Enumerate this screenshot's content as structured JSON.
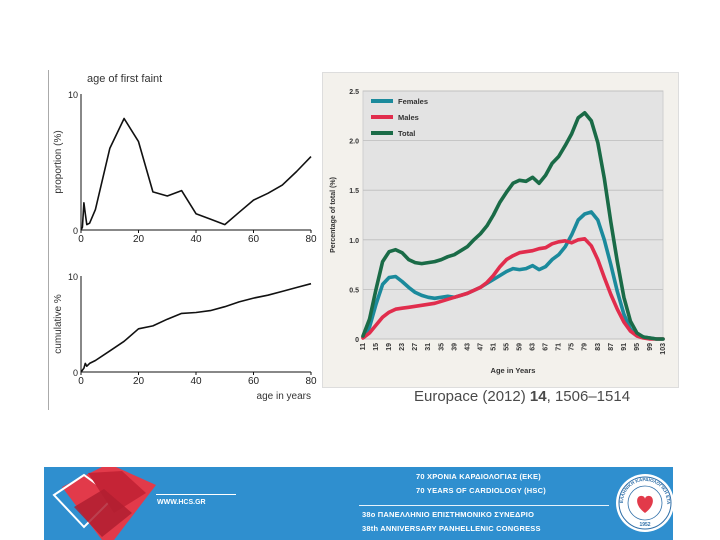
{
  "chart_data": [
    {
      "type": "line",
      "title": "age of first faint",
      "ylabel": "proportion (%)",
      "xlabel": "",
      "xlim": [
        0,
        80
      ],
      "ylim": [
        0,
        10
      ],
      "xticks": [
        "0",
        "20",
        "40",
        "60",
        "80"
      ],
      "yticks": [
        "0",
        "10"
      ],
      "series": [
        {
          "name": "age of first faint",
          "x": [
            0,
            0.5,
            1,
            1.5,
            2,
            3,
            5,
            10,
            15,
            20,
            25,
            30,
            35,
            40,
            45,
            50,
            55,
            60,
            65,
            70,
            75,
            80
          ],
          "values": [
            0,
            0.2,
            2.0,
            1.2,
            0.4,
            0.5,
            1.5,
            6.0,
            8.2,
            6.5,
            2.8,
            2.5,
            2.9,
            1.2,
            0.8,
            0.4,
            1.3,
            2.2,
            2.7,
            3.3,
            4.3,
            5.4
          ]
        }
      ]
    },
    {
      "type": "line",
      "title": "",
      "ylabel": "cumulative %",
      "xlabel": "age in years",
      "xlim": [
        0,
        80
      ],
      "ylim": [
        0,
        10
      ],
      "xticks": [
        "0",
        "20",
        "40",
        "60",
        "80"
      ],
      "yticks": [
        "0",
        "10"
      ],
      "series": [
        {
          "name": "cumulative",
          "x": [
            0,
            1,
            1.5,
            2,
            3,
            5,
            10,
            15,
            20,
            25,
            30,
            35,
            40,
            45,
            50,
            55,
            60,
            65,
            70,
            75,
            80
          ],
          "values": [
            0,
            0.4,
            0.9,
            0.6,
            0.9,
            1.2,
            2.2,
            3.2,
            4.5,
            4.8,
            5.5,
            6.1,
            6.2,
            6.4,
            6.8,
            7.3,
            7.7,
            8.0,
            8.4,
            8.8,
            9.2
          ]
        }
      ]
    },
    {
      "type": "line",
      "title": "",
      "xlabel": "Age in Years",
      "ylabel": "Percentage of total (%)",
      "xlim": [
        11,
        103
      ],
      "ylim": [
        0,
        2.5
      ],
      "yticks": [
        "0",
        "0.5",
        "1.0",
        "1.5",
        "2.0",
        "2.5"
      ],
      "xticks": [
        "11",
        "15",
        "19",
        "23",
        "27",
        "31",
        "35",
        "39",
        "43",
        "47",
        "51",
        "55",
        "59",
        "63",
        "67",
        "71",
        "75",
        "79",
        "83",
        "87",
        "91",
        "95",
        "99",
        "103"
      ],
      "legend_position": "top-left",
      "colors": {
        "Females": "#1b8a9c",
        "Males": "#e12d4d",
        "Total": "#1a6b47"
      },
      "series": [
        {
          "name": "Females",
          "x": [
            11,
            13,
            15,
            17,
            19,
            21,
            23,
            25,
            27,
            29,
            31,
            33,
            35,
            37,
            39,
            41,
            43,
            45,
            47,
            49,
            51,
            53,
            55,
            57,
            59,
            61,
            63,
            65,
            67,
            69,
            71,
            73,
            75,
            77,
            79,
            81,
            83,
            85,
            87,
            89,
            91,
            93,
            95,
            97,
            99,
            101,
            103
          ],
          "values": [
            0.02,
            0.12,
            0.35,
            0.55,
            0.62,
            0.63,
            0.58,
            0.52,
            0.47,
            0.44,
            0.42,
            0.41,
            0.42,
            0.43,
            0.42,
            0.44,
            0.46,
            0.49,
            0.52,
            0.56,
            0.6,
            0.64,
            0.68,
            0.71,
            0.7,
            0.71,
            0.74,
            0.7,
            0.73,
            0.8,
            0.85,
            0.93,
            1.05,
            1.2,
            1.26,
            1.28,
            1.2,
            1.0,
            0.75,
            0.48,
            0.25,
            0.1,
            0.04,
            0.02,
            0.01,
            0.0,
            0.0
          ]
        },
        {
          "name": "Males",
          "x": [
            11,
            13,
            15,
            17,
            19,
            21,
            23,
            25,
            27,
            29,
            31,
            33,
            35,
            37,
            39,
            41,
            43,
            45,
            47,
            49,
            51,
            53,
            55,
            57,
            59,
            61,
            63,
            65,
            67,
            69,
            71,
            73,
            75,
            77,
            79,
            81,
            83,
            85,
            87,
            89,
            91,
            93,
            95,
            97,
            99,
            101,
            103
          ],
          "values": [
            0.01,
            0.06,
            0.14,
            0.22,
            0.27,
            0.3,
            0.31,
            0.32,
            0.33,
            0.34,
            0.35,
            0.36,
            0.38,
            0.4,
            0.42,
            0.44,
            0.46,
            0.49,
            0.52,
            0.57,
            0.64,
            0.73,
            0.8,
            0.84,
            0.87,
            0.88,
            0.89,
            0.91,
            0.92,
            0.96,
            0.98,
            0.99,
            0.97,
            1.0,
            1.01,
            0.94,
            0.8,
            0.62,
            0.45,
            0.3,
            0.17,
            0.08,
            0.03,
            0.01,
            0.0,
            0.0,
            0.0
          ]
        },
        {
          "name": "Total",
          "x": [
            11,
            13,
            15,
            17,
            19,
            21,
            23,
            25,
            27,
            29,
            31,
            33,
            35,
            37,
            39,
            41,
            43,
            45,
            47,
            49,
            51,
            53,
            55,
            57,
            59,
            61,
            63,
            65,
            67,
            69,
            71,
            73,
            75,
            77,
            79,
            81,
            83,
            85,
            87,
            89,
            91,
            93,
            95,
            97,
            99,
            101,
            103
          ],
          "values": [
            0.03,
            0.2,
            0.5,
            0.78,
            0.88,
            0.9,
            0.87,
            0.8,
            0.77,
            0.76,
            0.77,
            0.78,
            0.8,
            0.83,
            0.85,
            0.89,
            0.93,
            1.0,
            1.06,
            1.14,
            1.25,
            1.38,
            1.48,
            1.57,
            1.6,
            1.59,
            1.63,
            1.57,
            1.65,
            1.77,
            1.84,
            1.95,
            2.07,
            2.23,
            2.28,
            2.2,
            1.98,
            1.62,
            1.18,
            0.78,
            0.42,
            0.18,
            0.06,
            0.02,
            0.01,
            0.0,
            0.0
          ]
        }
      ]
    }
  ],
  "citation": {
    "journal": "Europace (2012)",
    "volume": "14",
    "pages": "1506–1514"
  },
  "footer": {
    "website": "WWW.HCS.GR",
    "line1": "70 ΧΡΟΝΙΑ ΚΑΡΔΙΟΛΟΓΙΑΣ (ΕΚΕ)",
    "line2": "70 YEARS OF CARDIOLOGY (HSC)",
    "line3": "38ο ΠΑΝΕΛΛΗΝΙΟ ΕΠΙΣΤΗΜΟΝΙΚΟ ΣΥΝΕΔΡΙΟ",
    "line4": "38th ANNIVERSARY PANHELLENIC CONGRESS",
    "seal_text": "ΕΛΛΗΝΙΚΗ ΚΑΡΔΙΟΛΟΓΙΚΗ ΕΤΑΙΡΕΙΑ",
    "seal_year": "1952",
    "accent": "#2f8fcf"
  }
}
